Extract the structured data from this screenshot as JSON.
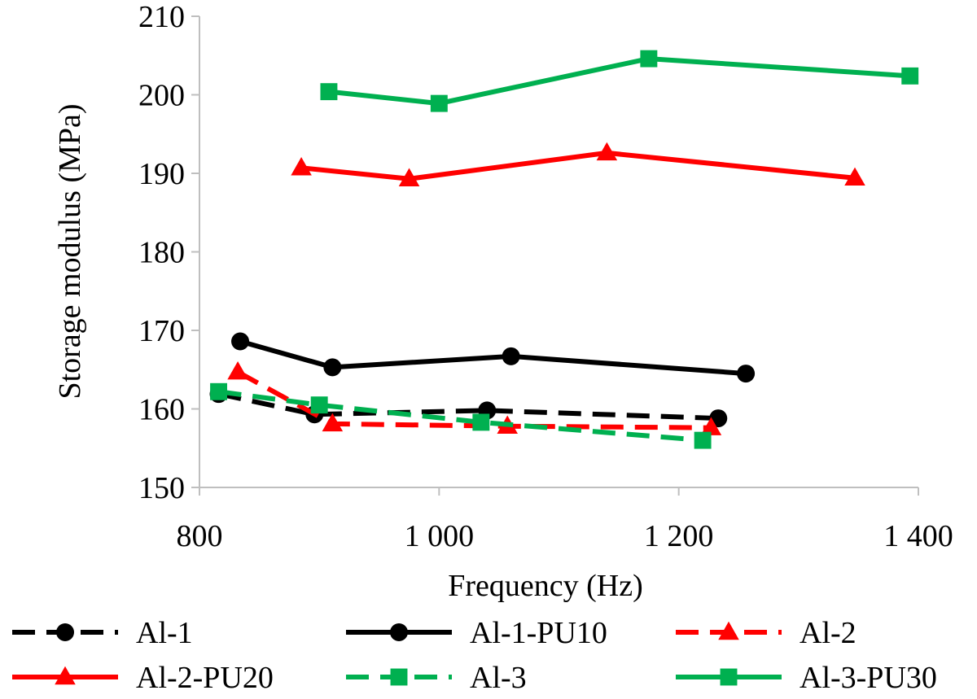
{
  "chart_data": {
    "type": "line",
    "xlabel": "Frequency (Hz)",
    "ylabel": "Storage modulus (MPa)",
    "xlim": [
      800,
      1400
    ],
    "ylim": [
      150,
      210
    ],
    "x_ticks": [
      800,
      1000,
      1200,
      1400
    ],
    "x_tick_labels": [
      "800",
      "1 000",
      "1 200",
      "1 400"
    ],
    "y_ticks": [
      150,
      160,
      170,
      180,
      190,
      200,
      210
    ],
    "y_tick_labels": [
      "150",
      "160",
      "170",
      "180",
      "190",
      "200",
      "210"
    ],
    "grid": false,
    "legend_position": "bottom",
    "series": [
      {
        "name": "Al-1",
        "color": "#000000",
        "dash": true,
        "marker": "circle",
        "x": [
          816,
          896,
          1040,
          1233
        ],
        "y": [
          161.9,
          159.3,
          159.8,
          158.8
        ]
      },
      {
        "name": "Al-1-PU10",
        "color": "#000000",
        "dash": false,
        "marker": "circle",
        "x": [
          834,
          911,
          1060,
          1256
        ],
        "y": [
          168.6,
          165.3,
          166.7,
          164.5
        ]
      },
      {
        "name": "Al-2",
        "color": "#ff0000",
        "dash": true,
        "marker": "triangle",
        "x": [
          832,
          911,
          1057,
          1227
        ],
        "y": [
          164.7,
          158.1,
          157.8,
          157.6
        ]
      },
      {
        "name": "Al-2-PU20",
        "color": "#ff0000",
        "dash": false,
        "marker": "triangle",
        "x": [
          885,
          975,
          1140,
          1347
        ],
        "y": [
          190.7,
          189.3,
          192.6,
          189.4
        ]
      },
      {
        "name": "Al-3",
        "color": "#00b050",
        "dash": true,
        "marker": "square",
        "x": [
          816,
          900,
          1035,
          1220
        ],
        "y": [
          162.2,
          160.5,
          158.3,
          156.0
        ]
      },
      {
        "name": "Al-3-PU30",
        "color": "#00b050",
        "dash": false,
        "marker": "square",
        "x": [
          908,
          1000,
          1175,
          1393
        ],
        "y": [
          200.4,
          198.9,
          204.6,
          202.4
        ]
      }
    ]
  }
}
